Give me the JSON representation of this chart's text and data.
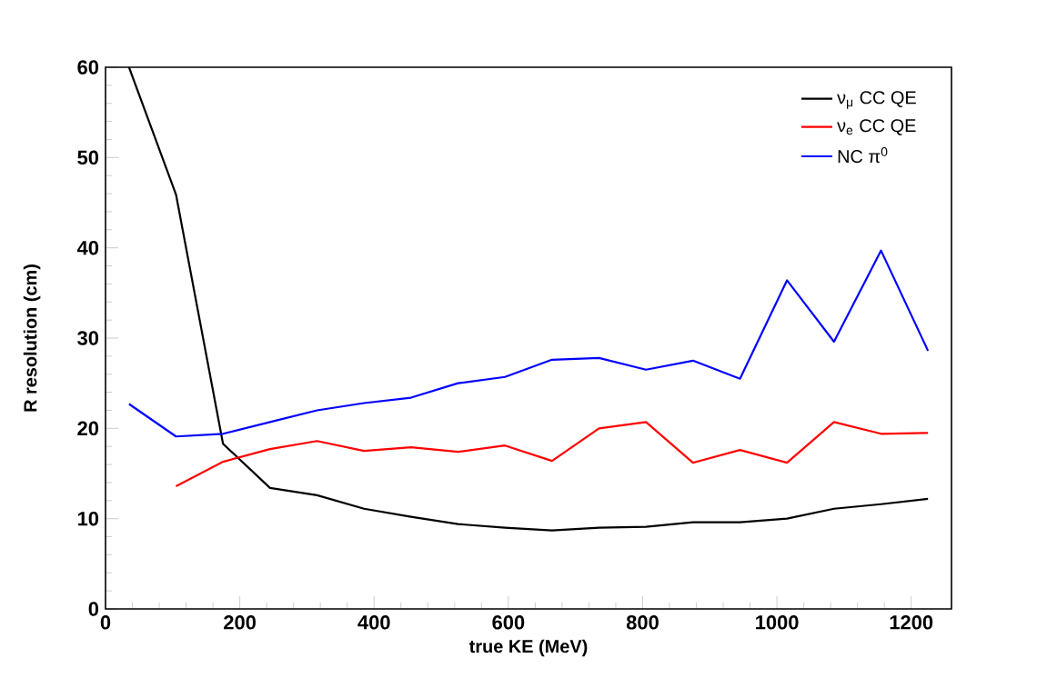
{
  "chart_data": {
    "type": "line",
    "xlabel": "true KE (MeV)",
    "ylabel": "R resolution (cm)",
    "xlim": [
      0,
      1260
    ],
    "ylim": [
      0,
      60
    ],
    "xticks": [
      0,
      200,
      400,
      600,
      800,
      1000,
      1200
    ],
    "yticks": [
      0,
      10,
      20,
      30,
      40,
      50,
      60
    ],
    "grid": false,
    "legend": "top right",
    "marker": "none",
    "line_style": "solid",
    "series": [
      {
        "name": "ν$_{μ}$ CC QE",
        "color": "#000000",
        "x": [
          35,
          105,
          175,
          245,
          315,
          385,
          455,
          525,
          595,
          665,
          735,
          805,
          875,
          945,
          1015,
          1085,
          1155,
          1225
        ],
        "values": [
          60,
          45.9,
          18.3,
          13.4,
          12.6,
          11.1,
          10.2,
          9.4,
          9.0,
          8.7,
          9.0,
          9.1,
          9.6,
          9.6,
          10.0,
          11.1,
          11.6,
          12.2
        ]
      },
      {
        "name": "ν$_{e}$ CC QE",
        "color": "#ff0000",
        "x": [
          105,
          175,
          245,
          315,
          385,
          455,
          525,
          595,
          665,
          735,
          805,
          875,
          945,
          1015,
          1085,
          1155,
          1225
        ],
        "values": [
          13.6,
          16.3,
          17.7,
          18.6,
          17.5,
          17.9,
          17.4,
          18.1,
          16.4,
          20.0,
          20.7,
          16.2,
          17.6,
          16.2,
          20.7,
          19.4,
          19.5
        ]
      },
      {
        "name": "NC π$^{0}$",
        "color": "#0000ff",
        "x": [
          35,
          105,
          175,
          245,
          315,
          385,
          455,
          525,
          595,
          665,
          735,
          805,
          875,
          945,
          1015,
          1085,
          1155,
          1225
        ],
        "values": [
          22.7,
          19.1,
          19.4,
          20.7,
          22.0,
          22.8,
          23.4,
          25.0,
          25.7,
          27.6,
          27.8,
          26.5,
          27.5,
          25.5,
          36.4,
          29.6,
          39.7,
          28.6
        ]
      }
    ]
  }
}
